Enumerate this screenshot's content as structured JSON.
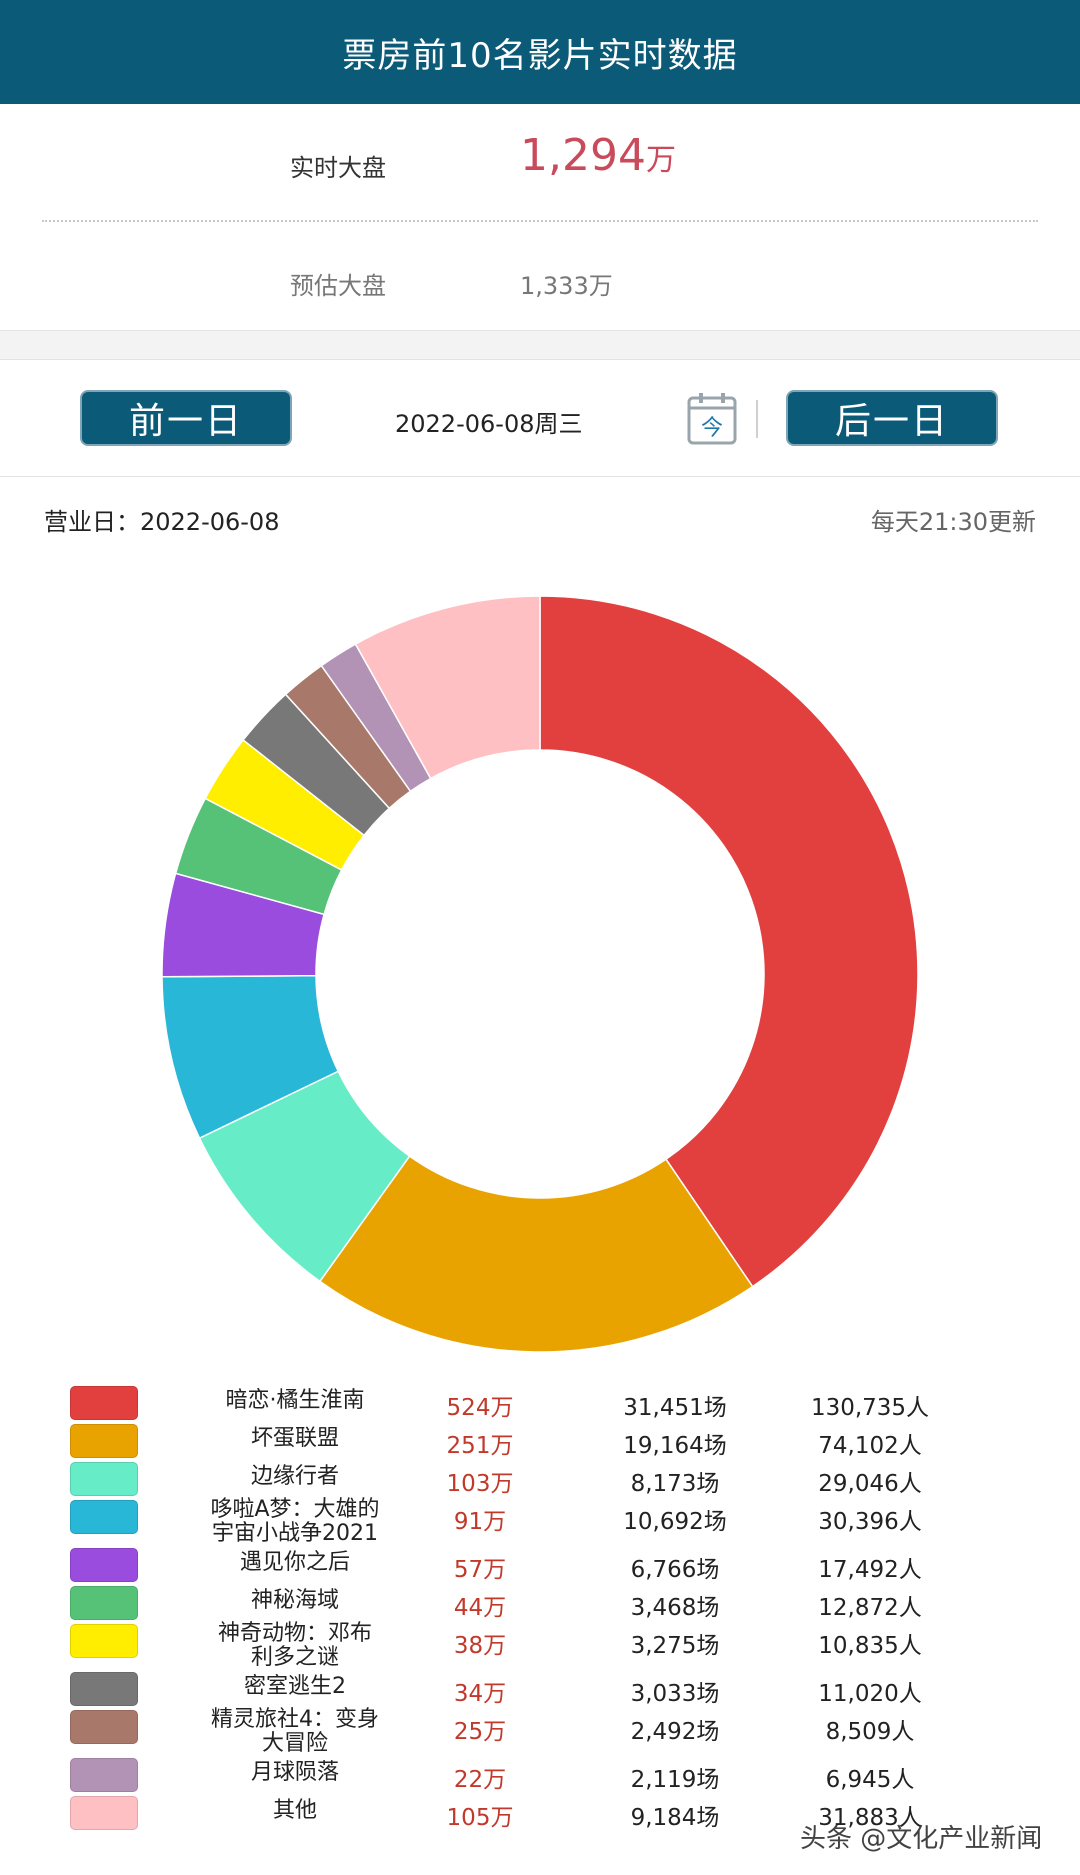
{
  "header": {
    "title": "票房前10名影片实时数据"
  },
  "summary": {
    "realtime_label": "实时大盘",
    "realtime_value": "1,294",
    "realtime_unit": "万",
    "forecast_label": "预估大盘",
    "forecast_value": "1,333万"
  },
  "date_nav": {
    "prev_label": "前一日",
    "date": "2022-06-08周三",
    "today_icon_text": "今",
    "next_label": "后一日"
  },
  "business_day": "营业日：2022-06-08",
  "update_note": "每天21:30更新",
  "chart_data": {
    "type": "pie",
    "donut": true,
    "categories": [
      "暗恋·橘生淮南",
      "坏蛋联盟",
      "边缘行者",
      "哆啦A梦：大雄的宇宙小战争2021",
      "遇见你之后",
      "神秘海域",
      "神奇动物：邓布利多之谜",
      "密室逃生2",
      "精灵旅社4：变身大冒险",
      "月球陨落",
      "其他"
    ],
    "values": [
      524,
      251,
      103,
      91,
      57,
      44,
      38,
      34,
      25,
      22,
      105
    ],
    "colors": [
      "#e2403e",
      "#e9a300",
      "#66ecc7",
      "#29b7d8",
      "#9a4cdf",
      "#56c277",
      "#ffee00",
      "#787878",
      "#a8796a",
      "#b393b5",
      "#ffc0c4"
    ]
  },
  "legend": {
    "rows": [
      {
        "name_lines": [
          "暗恋·橘生淮南"
        ],
        "box": "524万",
        "shows": "31,451场",
        "people": "130,735人"
      },
      {
        "name_lines": [
          "坏蛋联盟"
        ],
        "box": "251万",
        "shows": "19,164场",
        "people": "74,102人"
      },
      {
        "name_lines": [
          "边缘行者"
        ],
        "box": "103万",
        "shows": "8,173场",
        "people": "29,046人"
      },
      {
        "name_lines": [
          "哆啦A梦：大雄的",
          "宇宙小战争2021"
        ],
        "box": "91万",
        "shows": "10,692场",
        "people": "30,396人"
      },
      {
        "name_lines": [
          "遇见你之后"
        ],
        "box": "57万",
        "shows": "6,766场",
        "people": "17,492人"
      },
      {
        "name_lines": [
          "神秘海域"
        ],
        "box": "44万",
        "shows": "3,468场",
        "people": "12,872人"
      },
      {
        "name_lines": [
          "神奇动物：邓布",
          "利多之谜"
        ],
        "box": "38万",
        "shows": "3,275场",
        "people": "10,835人"
      },
      {
        "name_lines": [
          "密室逃生2"
        ],
        "box": "34万",
        "shows": "3,033场",
        "people": "11,020人"
      },
      {
        "name_lines": [
          "精灵旅社4：变身",
          "大冒险"
        ],
        "box": "25万",
        "shows": "2,492场",
        "people": "8,509人"
      },
      {
        "name_lines": [
          "月球陨落"
        ],
        "box": "22万",
        "shows": "2,119场",
        "people": "6,945人"
      },
      {
        "name_lines": [
          "其他"
        ],
        "box": "105万",
        "shows": "9,184场",
        "people": "31,883人"
      }
    ]
  },
  "watermark": "头条 @文化产业新闻"
}
